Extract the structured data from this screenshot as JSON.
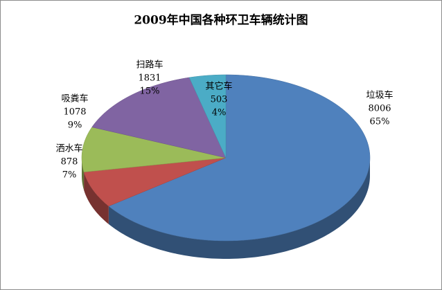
{
  "chart_data": {
    "type": "pie",
    "title": "2009年中国各种环卫车辆统计图",
    "categories": [
      "垃圾车",
      "洒水车",
      "吸粪车",
      "扫路车",
      "其它车"
    ],
    "values": [
      8006,
      878,
      1078,
      1831,
      503
    ],
    "percent_labels": [
      "65%",
      "7%",
      "9%",
      "15%",
      "4%"
    ],
    "colors": [
      "#4f81bd",
      "#c0504d",
      "#9bbb59",
      "#8064a2",
      "#4bacc6"
    ]
  }
}
